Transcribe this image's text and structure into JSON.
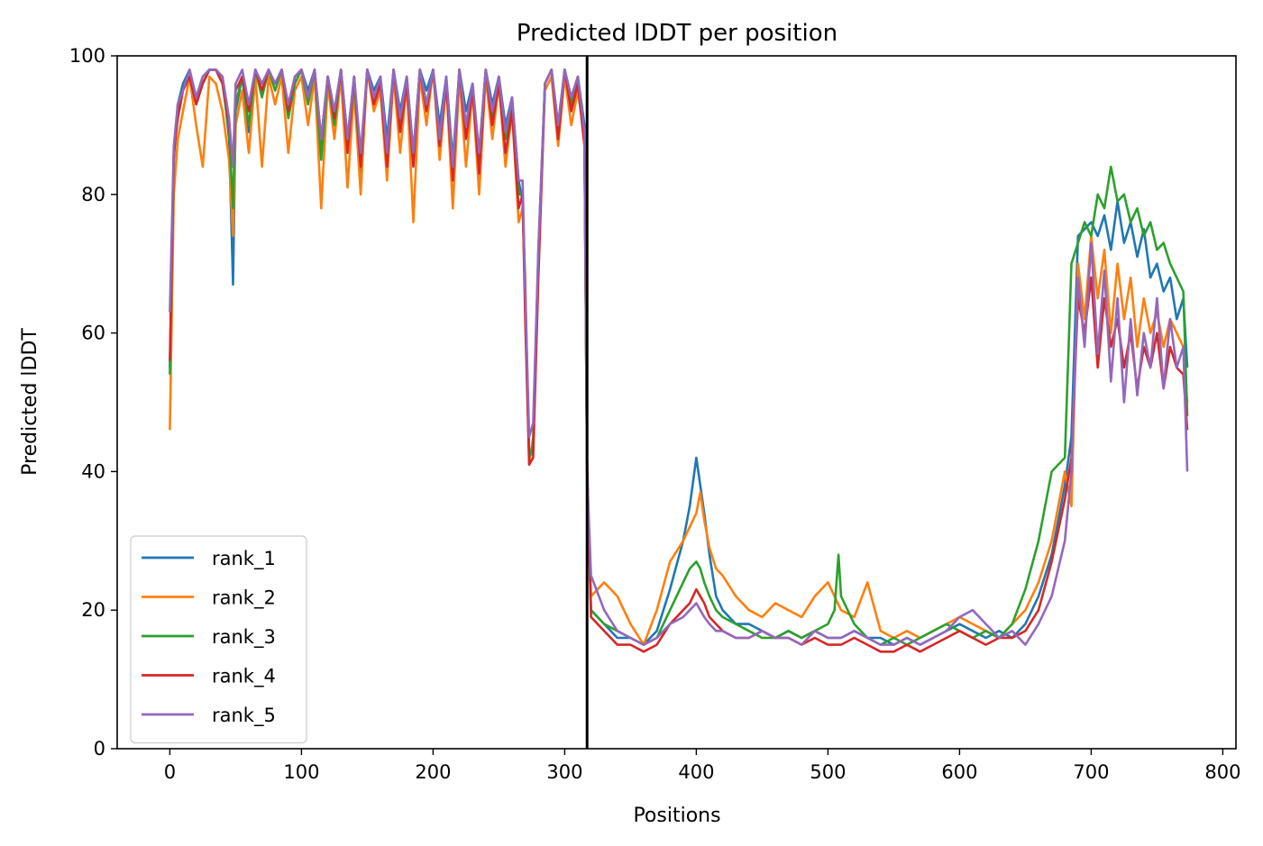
{
  "chart_data": {
    "type": "line",
    "title": "Predicted lDDT per position",
    "xlabel": "Positions",
    "ylabel": "Predicted lDDT",
    "xlim": [
      -40,
      810
    ],
    "ylim": [
      0,
      100
    ],
    "xticks": [
      0,
      100,
      200,
      300,
      400,
      500,
      600,
      700,
      800
    ],
    "yticks": [
      0,
      20,
      40,
      60,
      80,
      100
    ],
    "grid": false,
    "legend_position": "lower-left",
    "vertical_line_x": 317,
    "series": [
      {
        "name": "rank_1",
        "color": "#1f77b4",
        "x": [
          0,
          3,
          6,
          10,
          15,
          20,
          25,
          30,
          35,
          40,
          45,
          48,
          50,
          55,
          60,
          65,
          70,
          75,
          80,
          85,
          90,
          95,
          100,
          105,
          110,
          115,
          120,
          125,
          130,
          135,
          140,
          145,
          150,
          155,
          160,
          165,
          170,
          175,
          180,
          185,
          190,
          195,
          200,
          205,
          210,
          215,
          220,
          225,
          230,
          235,
          240,
          245,
          250,
          255,
          260,
          265,
          268,
          270,
          273,
          276,
          280,
          285,
          290,
          295,
          300,
          305,
          310,
          315,
          317,
          320,
          330,
          340,
          350,
          360,
          370,
          380,
          390,
          395,
          400,
          403,
          406,
          410,
          415,
          420,
          430,
          440,
          450,
          460,
          470,
          480,
          490,
          500,
          510,
          520,
          530,
          540,
          550,
          560,
          570,
          580,
          590,
          600,
          610,
          620,
          630,
          640,
          650,
          660,
          670,
          680,
          685,
          690,
          695,
          700,
          705,
          710,
          715,
          720,
          725,
          730,
          735,
          740,
          745,
          750,
          755,
          760,
          765,
          770,
          773
        ],
        "y": [
          55,
          85,
          93,
          96,
          98,
          94,
          97,
          98,
          98,
          97,
          88,
          67,
          92,
          97,
          89,
          98,
          95,
          98,
          96,
          98,
          92,
          97,
          98,
          95,
          98,
          86,
          97,
          92,
          98,
          88,
          97,
          82,
          98,
          95,
          97,
          88,
          98,
          92,
          97,
          86,
          98,
          95,
          98,
          90,
          97,
          85,
          98,
          92,
          96,
          85,
          98,
          93,
          97,
          90,
          94,
          82,
          79,
          65,
          42,
          43,
          72,
          96,
          98,
          90,
          98,
          94,
          97,
          90,
          40,
          20,
          18,
          16,
          16,
          15,
          17,
          23,
          30,
          35,
          42,
          38,
          34,
          28,
          22,
          20,
          18,
          18,
          17,
          16,
          17,
          16,
          17,
          16,
          16,
          17,
          16,
          16,
          15,
          16,
          15,
          16,
          17,
          18,
          17,
          16,
          17,
          16,
          18,
          22,
          28,
          38,
          45,
          74,
          75,
          76,
          74,
          77,
          72,
          79,
          73,
          76,
          71,
          75,
          68,
          70,
          66,
          68,
          62,
          65,
          55
        ]
      },
      {
        "name": "rank_2",
        "color": "#ff7f0e",
        "x": [
          0,
          3,
          6,
          10,
          15,
          20,
          25,
          30,
          35,
          40,
          45,
          48,
          50,
          55,
          60,
          65,
          70,
          75,
          80,
          85,
          90,
          95,
          100,
          105,
          110,
          115,
          120,
          125,
          130,
          135,
          140,
          145,
          150,
          155,
          160,
          165,
          170,
          175,
          180,
          185,
          190,
          195,
          200,
          205,
          210,
          215,
          220,
          225,
          230,
          235,
          240,
          245,
          250,
          255,
          260,
          265,
          268,
          270,
          273,
          276,
          280,
          285,
          290,
          295,
          300,
          305,
          310,
          315,
          317,
          320,
          330,
          340,
          350,
          360,
          370,
          380,
          390,
          395,
          400,
          403,
          406,
          410,
          415,
          420,
          430,
          440,
          450,
          460,
          470,
          480,
          490,
          500,
          510,
          520,
          530,
          540,
          550,
          560,
          570,
          580,
          590,
          600,
          610,
          620,
          630,
          640,
          650,
          660,
          670,
          680,
          685,
          690,
          695,
          700,
          705,
          710,
          715,
          720,
          725,
          730,
          735,
          740,
          745,
          750,
          755,
          760,
          765,
          770,
          773
        ],
        "y": [
          46,
          80,
          88,
          92,
          97,
          90,
          84,
          97,
          96,
          92,
          85,
          74,
          90,
          95,
          86,
          97,
          84,
          97,
          93,
          97,
          86,
          95,
          97,
          90,
          97,
          78,
          96,
          88,
          97,
          81,
          95,
          80,
          98,
          92,
          95,
          82,
          97,
          86,
          96,
          76,
          97,
          90,
          98,
          85,
          96,
          78,
          97,
          84,
          95,
          80,
          97,
          88,
          96,
          84,
          92,
          76,
          78,
          68,
          41,
          45,
          70,
          95,
          97,
          87,
          97,
          90,
          95,
          88,
          40,
          22,
          24,
          22,
          18,
          15,
          20,
          27,
          30,
          32,
          34,
          37,
          33,
          29,
          26,
          25,
          22,
          20,
          19,
          21,
          20,
          19,
          22,
          24,
          20,
          19,
          24,
          17,
          16,
          17,
          16,
          17,
          18,
          19,
          18,
          17,
          16,
          18,
          20,
          24,
          30,
          40,
          35,
          70,
          62,
          74,
          65,
          72,
          60,
          70,
          62,
          68,
          58,
          65,
          60,
          63,
          58,
          62,
          60,
          58,
          50
        ]
      },
      {
        "name": "rank_3",
        "color": "#2ca02c",
        "x": [
          0,
          3,
          6,
          10,
          15,
          20,
          25,
          30,
          35,
          40,
          45,
          48,
          50,
          55,
          60,
          65,
          70,
          75,
          80,
          85,
          90,
          95,
          100,
          105,
          110,
          115,
          120,
          125,
          130,
          135,
          140,
          145,
          150,
          155,
          160,
          165,
          170,
          175,
          180,
          185,
          190,
          195,
          200,
          205,
          210,
          215,
          220,
          225,
          230,
          235,
          240,
          245,
          250,
          255,
          260,
          265,
          268,
          270,
          273,
          276,
          280,
          285,
          290,
          295,
          300,
          305,
          310,
          315,
          317,
          320,
          330,
          340,
          350,
          360,
          370,
          380,
          390,
          395,
          400,
          403,
          406,
          410,
          415,
          420,
          430,
          440,
          450,
          460,
          470,
          480,
          490,
          500,
          505,
          508,
          510,
          520,
          530,
          540,
          550,
          560,
          570,
          580,
          590,
          600,
          610,
          620,
          630,
          640,
          650,
          660,
          670,
          680,
          685,
          690,
          695,
          700,
          705,
          710,
          715,
          720,
          725,
          730,
          735,
          740,
          745,
          750,
          755,
          760,
          765,
          770,
          773
        ],
        "y": [
          54,
          86,
          92,
          95,
          97,
          93,
          96,
          98,
          98,
          96,
          89,
          78,
          93,
          97,
          90,
          98,
          94,
          98,
          95,
          98,
          91,
          96,
          98,
          93,
          98,
          85,
          97,
          90,
          98,
          87,
          96,
          84,
          98,
          94,
          96,
          86,
          98,
          90,
          97,
          85,
          98,
          93,
          98,
          88,
          96,
          83,
          98,
          90,
          95,
          86,
          98,
          91,
          97,
          88,
          93,
          80,
          80,
          64,
          42,
          44,
          70,
          96,
          98,
          89,
          98,
          93,
          97,
          88,
          40,
          20,
          18,
          17,
          16,
          15,
          16,
          20,
          24,
          26,
          27,
          26,
          24,
          22,
          20,
          19,
          18,
          17,
          16,
          16,
          17,
          16,
          17,
          18,
          20,
          28,
          22,
          18,
          16,
          15,
          16,
          15,
          16,
          17,
          18,
          17,
          16,
          17,
          16,
          18,
          23,
          30,
          40,
          42,
          70,
          73,
          76,
          74,
          80,
          78,
          84,
          79,
          80,
          76,
          78,
          74,
          76,
          72,
          73,
          70,
          68,
          66,
          48
        ]
      },
      {
        "name": "rank_4",
        "color": "#d62728",
        "x": [
          0,
          3,
          6,
          10,
          15,
          20,
          25,
          30,
          35,
          40,
          45,
          48,
          50,
          55,
          60,
          65,
          70,
          75,
          80,
          85,
          90,
          95,
          100,
          105,
          110,
          115,
          120,
          125,
          130,
          135,
          140,
          145,
          150,
          155,
          160,
          165,
          170,
          175,
          180,
          185,
          190,
          195,
          200,
          205,
          210,
          215,
          220,
          225,
          230,
          235,
          240,
          245,
          250,
          255,
          260,
          265,
          268,
          270,
          273,
          276,
          280,
          285,
          290,
          295,
          300,
          305,
          310,
          315,
          317,
          320,
          330,
          340,
          350,
          360,
          370,
          380,
          390,
          395,
          400,
          403,
          406,
          410,
          415,
          420,
          430,
          440,
          450,
          460,
          470,
          480,
          490,
          500,
          510,
          520,
          530,
          540,
          550,
          560,
          570,
          580,
          590,
          600,
          610,
          620,
          630,
          640,
          650,
          660,
          670,
          680,
          685,
          690,
          695,
          700,
          705,
          710,
          715,
          720,
          725,
          730,
          735,
          740,
          745,
          750,
          755,
          760,
          765,
          770,
          773
        ],
        "y": [
          56,
          86,
          91,
          95,
          97,
          93,
          96,
          98,
          98,
          96,
          90,
          84,
          95,
          97,
          92,
          98,
          95,
          98,
          96,
          98,
          92,
          97,
          98,
          94,
          98,
          88,
          97,
          91,
          98,
          86,
          97,
          84,
          98,
          93,
          96,
          84,
          98,
          89,
          96,
          84,
          98,
          92,
          98,
          87,
          96,
          82,
          98,
          88,
          95,
          83,
          98,
          90,
          96,
          86,
          92,
          78,
          80,
          62,
          41,
          42,
          68,
          96,
          98,
          88,
          98,
          92,
          96,
          87,
          42,
          19,
          17,
          15,
          15,
          14,
          15,
          18,
          20,
          21,
          23,
          22,
          21,
          19,
          18,
          17,
          16,
          16,
          17,
          16,
          16,
          15,
          16,
          15,
          15,
          16,
          15,
          14,
          14,
          15,
          14,
          15,
          16,
          17,
          16,
          15,
          16,
          16,
          17,
          20,
          27,
          36,
          42,
          65,
          60,
          68,
          55,
          65,
          58,
          62,
          55,
          60,
          52,
          58,
          55,
          60,
          52,
          58,
          55,
          54,
          46
        ]
      },
      {
        "name": "rank_5",
        "color": "#9467bd",
        "x": [
          0,
          3,
          6,
          10,
          15,
          20,
          25,
          30,
          35,
          40,
          45,
          48,
          50,
          55,
          60,
          65,
          70,
          75,
          80,
          85,
          90,
          95,
          100,
          105,
          110,
          115,
          120,
          125,
          130,
          135,
          140,
          145,
          150,
          155,
          160,
          165,
          170,
          175,
          180,
          185,
          190,
          195,
          200,
          205,
          210,
          215,
          220,
          225,
          230,
          235,
          240,
          245,
          250,
          255,
          260,
          265,
          268,
          270,
          273,
          276,
          280,
          285,
          290,
          295,
          300,
          305,
          310,
          315,
          317,
          320,
          330,
          340,
          350,
          360,
          370,
          380,
          390,
          395,
          400,
          403,
          406,
          410,
          415,
          420,
          430,
          440,
          450,
          460,
          470,
          480,
          490,
          500,
          510,
          520,
          530,
          540,
          550,
          560,
          570,
          580,
          590,
          600,
          610,
          620,
          630,
          640,
          650,
          660,
          670,
          680,
          685,
          690,
          695,
          700,
          705,
          710,
          715,
          720,
          725,
          730,
          735,
          740,
          745,
          750,
          755,
          760,
          765,
          770,
          773
        ],
        "y": [
          63,
          87,
          93,
          95,
          98,
          94,
          97,
          98,
          98,
          97,
          91,
          84,
          96,
          98,
          93,
          98,
          96,
          98,
          96,
          98,
          93,
          97,
          98,
          94,
          98,
          88,
          97,
          92,
          98,
          88,
          97,
          86,
          98,
          94,
          97,
          86,
          98,
          91,
          97,
          86,
          98,
          93,
          98,
          88,
          97,
          84,
          98,
          90,
          96,
          86,
          98,
          92,
          97,
          89,
          94,
          82,
          82,
          66,
          45,
          47,
          72,
          96,
          98,
          90,
          98,
          94,
          97,
          89,
          40,
          25,
          20,
          17,
          16,
          15,
          16,
          18,
          19,
          20,
          21,
          20,
          19,
          18,
          17,
          17,
          16,
          16,
          17,
          16,
          16,
          15,
          17,
          16,
          16,
          17,
          16,
          15,
          15,
          16,
          15,
          16,
          17,
          19,
          20,
          18,
          16,
          17,
          15,
          18,
          22,
          30,
          40,
          68,
          58,
          73,
          57,
          69,
          53,
          65,
          50,
          62,
          51,
          60,
          55,
          65,
          52,
          62,
          55,
          58,
          40
        ]
      }
    ]
  }
}
